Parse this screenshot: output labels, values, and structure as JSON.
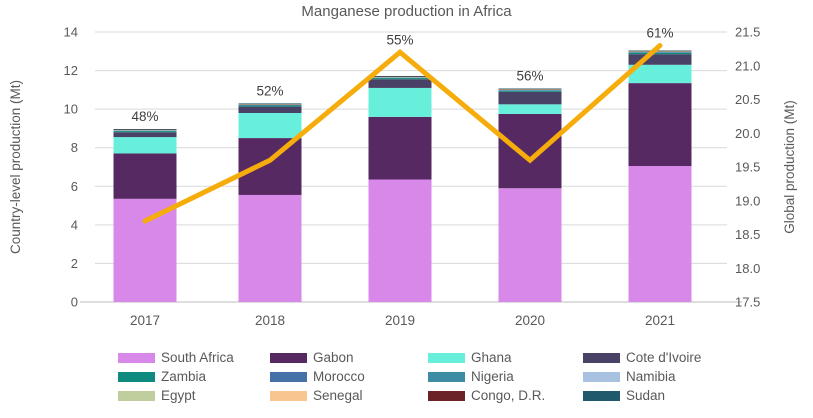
{
  "title": "Manganese production in Africa",
  "chart_data": {
    "type": "bar",
    "subtype": "stacked-bars-with-secondary-axis-line",
    "title": "Manganese production in Africa",
    "categories": [
      "2017",
      "2018",
      "2019",
      "2020",
      "2021"
    ],
    "series": [
      {
        "name": "South Africa",
        "color": "#d788e8",
        "values": [
          5.35,
          5.55,
          6.35,
          5.9,
          7.05
        ]
      },
      {
        "name": "Gabon",
        "color": "#572963",
        "values": [
          2.35,
          2.95,
          3.25,
          3.85,
          4.3
        ]
      },
      {
        "name": "Ghana",
        "color": "#68efdb",
        "values": [
          0.85,
          1.3,
          1.5,
          0.5,
          0.95
        ]
      },
      {
        "name": "Cote d'Ivoire",
        "color": "#4a4166",
        "values": [
          0.25,
          0.33,
          0.45,
          0.65,
          0.55
        ]
      },
      {
        "name": "Zambia",
        "color": "#0f8a7e",
        "values": [
          0.06,
          0.06,
          0.06,
          0.06,
          0.08
        ]
      },
      {
        "name": "Morocco",
        "color": "#4472a8",
        "values": [
          0.02,
          0.02,
          0.02,
          0.02,
          0.02
        ]
      },
      {
        "name": "Nigeria",
        "color": "#3d8ca3",
        "values": [
          0.02,
          0.02,
          0.02,
          0.02,
          0.02
        ]
      },
      {
        "name": "Namibia",
        "color": "#a8c1e0",
        "values": [
          0.01,
          0.01,
          0.01,
          0.01,
          0.01
        ]
      },
      {
        "name": "Egypt",
        "color": "#c0cd9d",
        "values": [
          0.01,
          0.01,
          0.01,
          0.01,
          0.01
        ]
      },
      {
        "name": "Senegal",
        "color": "#f8c591",
        "values": [
          0.01,
          0.01,
          0.01,
          0.01,
          0.01
        ]
      },
      {
        "name": "Congo, D.R.",
        "color": "#6b2327",
        "values": [
          0.01,
          0.01,
          0.01,
          0.01,
          0.01
        ]
      },
      {
        "name": "Sudan",
        "color": "#20596b",
        "values": [
          0.03,
          0.03,
          0.03,
          0.03,
          0.03
        ]
      }
    ],
    "line_series": {
      "name": "Global production",
      "axis": "right",
      "color": "#f6ad0c",
      "values": [
        18.7,
        19.6,
        21.2,
        19.6,
        21.3
      ]
    },
    "point_labels": [
      "48%",
      "52%",
      "55%",
      "56%",
      "61%"
    ],
    "left_axis": {
      "label": "Country-level production (Mt)",
      "min": 0,
      "max": 14,
      "step": 2,
      "ticks": [
        0,
        2,
        4,
        6,
        8,
        10,
        12,
        14
      ]
    },
    "right_axis": {
      "label": "Global production (Mt)",
      "min": 17.5,
      "max": 21.5,
      "step": 0.5,
      "ticks": [
        17.5,
        18.0,
        18.5,
        19.0,
        19.5,
        20.0,
        20.5,
        21.0,
        21.5
      ]
    },
    "grid": true,
    "legend_position": "bottom",
    "grid_color": "#d9d9d9",
    "axis_line_color": "#c9c9c9",
    "text_color": "#595959",
    "point_label_color": "#3f3f3f"
  }
}
